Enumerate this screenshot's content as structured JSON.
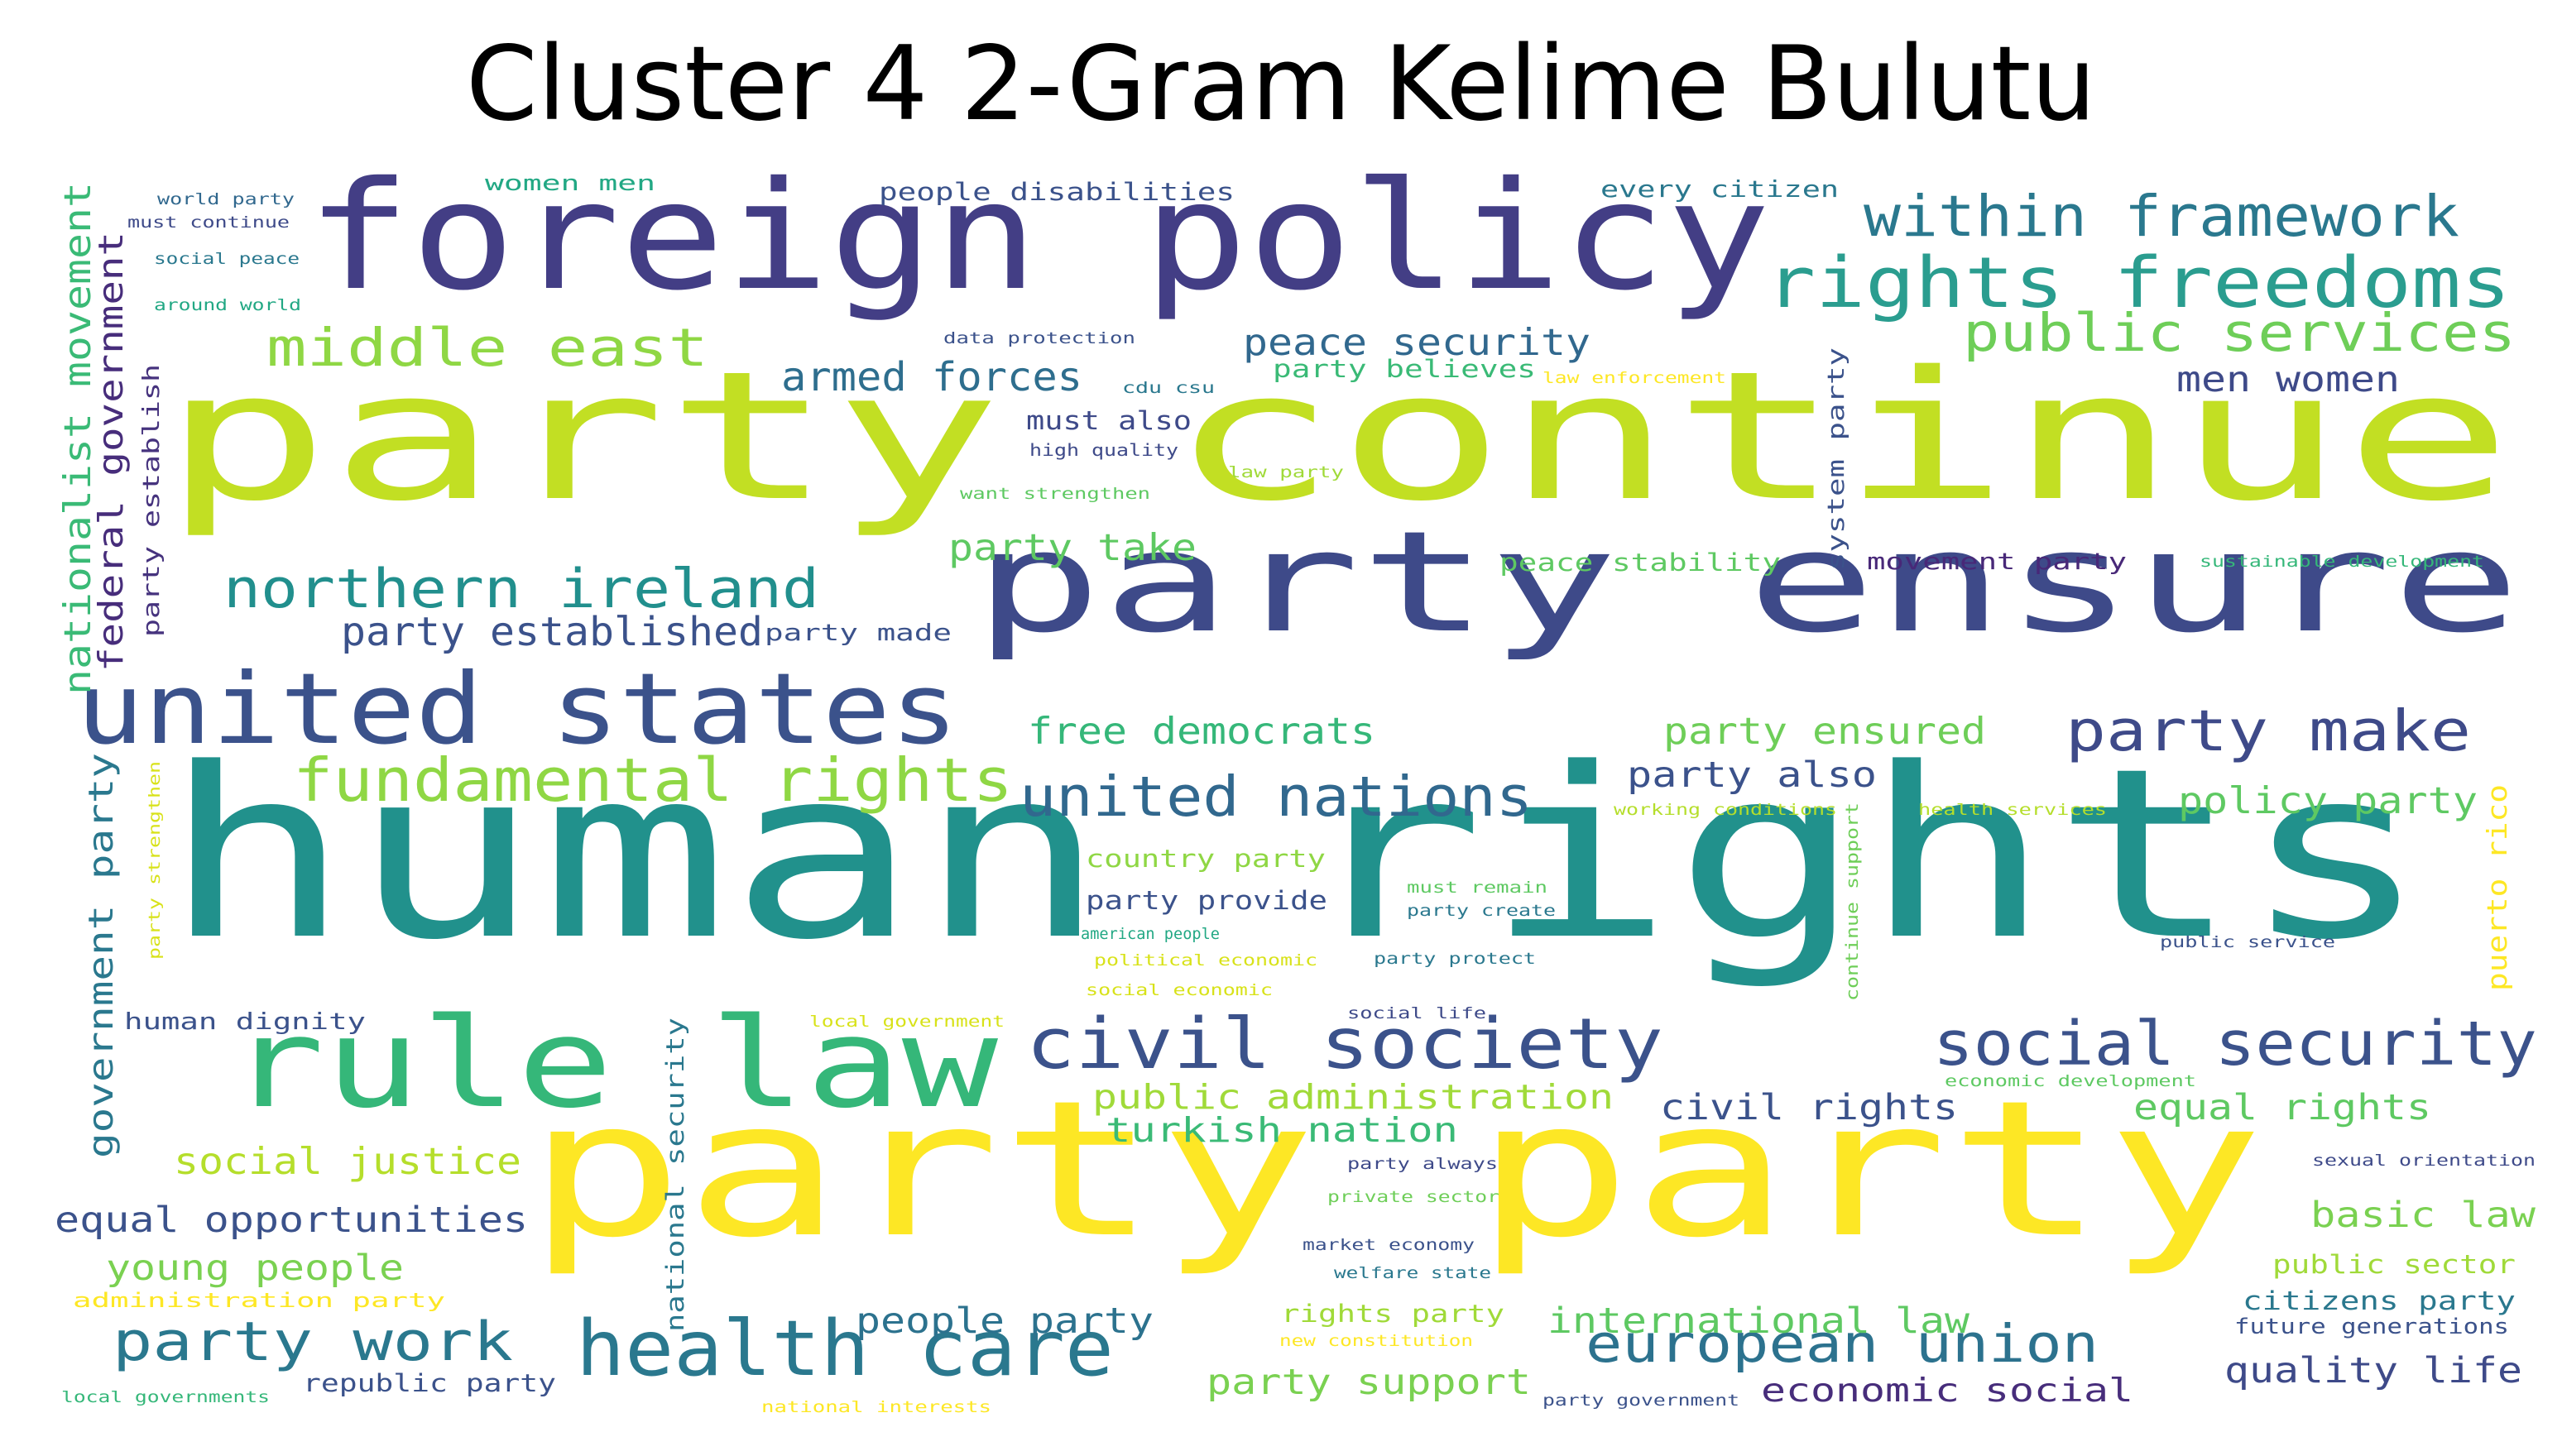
{
  "title": "Cluster 4 2-Gram Kelime Bulutu",
  "palette": {
    "background": "#ffffff",
    "title": "#000000"
  },
  "words": [
    {
      "text": "human rights",
      "color": "#21918c",
      "vertical": false
    },
    {
      "text": "party continue",
      "color": "#c2df23",
      "vertical": false
    },
    {
      "text": "party party",
      "color": "#fde725",
      "vertical": false
    },
    {
      "text": "party ensure",
      "color": "#3e4a89",
      "vertical": false
    },
    {
      "text": "foreign policy",
      "color": "#433e85",
      "vertical": false
    },
    {
      "text": "united states",
      "color": "#3b528b",
      "vertical": false
    },
    {
      "text": "rule law",
      "color": "#35b779",
      "vertical": false
    },
    {
      "text": "health care",
      "color": "#2a788e",
      "vertical": false
    },
    {
      "text": "civil society",
      "color": "#3b528b",
      "vertical": false
    },
    {
      "text": "social security",
      "color": "#3b528b",
      "vertical": false
    },
    {
      "text": "rights freedoms",
      "color": "#2a9d8f",
      "vertical": false
    },
    {
      "text": "within framework",
      "color": "#2a788e",
      "vertical": false
    },
    {
      "text": "northern ireland",
      "color": "#218f8d",
      "vertical": false
    },
    {
      "text": "fundamental rights",
      "color": "#8fd744",
      "vertical": false
    },
    {
      "text": "united nations",
      "color": "#31688e",
      "vertical": false
    },
    {
      "text": "party make",
      "color": "#3e4a89",
      "vertical": false
    },
    {
      "text": "european union",
      "color": "#2c728e",
      "vertical": false
    },
    {
      "text": "middle east",
      "color": "#8fd744",
      "vertical": false
    },
    {
      "text": "public services",
      "color": "#6ece58",
      "vertical": false
    },
    {
      "text": "party work",
      "color": "#2a788e",
      "vertical": false
    },
    {
      "text": "party establish",
      "color": "#46337e",
      "vertical": true
    },
    {
      "text": "federal government",
      "color": "#472d7b",
      "vertical": true
    },
    {
      "text": "nationalist movement",
      "color": "#3aba76",
      "vertical": true
    },
    {
      "text": "government party",
      "color": "#2a788e",
      "vertical": true
    },
    {
      "text": "armed forces",
      "color": "#2e6e8e",
      "vertical": false
    },
    {
      "text": "peace security",
      "color": "#31688e",
      "vertical": false
    },
    {
      "text": "party established",
      "color": "#3b528b",
      "vertical": false
    },
    {
      "text": "free democrats",
      "color": "#35b779",
      "vertical": false
    },
    {
      "text": "party ensured",
      "color": "#6ece58",
      "vertical": false
    },
    {
      "text": "party also",
      "color": "#3b528b",
      "vertical": false
    },
    {
      "text": "policy party",
      "color": "#5ec962",
      "vertical": false
    },
    {
      "text": "men women",
      "color": "#3e4a89",
      "vertical": false
    },
    {
      "text": "party take",
      "color": "#5ec962",
      "vertical": false
    },
    {
      "text": "public administration",
      "color": "#a0da39",
      "vertical": false
    },
    {
      "text": "turkish nation",
      "color": "#3aba76",
      "vertical": false
    },
    {
      "text": "civil rights",
      "color": "#3b528b",
      "vertical": false
    },
    {
      "text": "equal rights",
      "color": "#5ec962",
      "vertical": false
    },
    {
      "text": "social justice",
      "color": "#b5de2b",
      "vertical": false
    },
    {
      "text": "equal opportunities",
      "color": "#3b528b",
      "vertical": false
    },
    {
      "text": "young people",
      "color": "#7ad151",
      "vertical": false
    },
    {
      "text": "basic law",
      "color": "#7ad151",
      "vertical": false
    },
    {
      "text": "people party",
      "color": "#2c728e",
      "vertical": false
    },
    {
      "text": "international law",
      "color": "#5ec962",
      "vertical": false
    },
    {
      "text": "party support",
      "color": "#7ad151",
      "vertical": false
    },
    {
      "text": "quality life",
      "color": "#3e4a89",
      "vertical": false
    },
    {
      "text": "economic social",
      "color": "#472d7b",
      "vertical": false
    },
    {
      "text": "public sector",
      "color": "#a0da39",
      "vertical": false
    },
    {
      "text": "citizens party",
      "color": "#2a788e",
      "vertical": false
    },
    {
      "text": "future generations",
      "color": "#3b528b",
      "vertical": false
    },
    {
      "text": "republic party",
      "color": "#3b528b",
      "vertical": false
    },
    {
      "text": "must also",
      "color": "#3e4a89",
      "vertical": false
    },
    {
      "text": "party provide",
      "color": "#3b528b",
      "vertical": false
    },
    {
      "text": "country party",
      "color": "#8fd744",
      "vertical": false
    },
    {
      "text": "people disabilities",
      "color": "#3b528b",
      "vertical": false
    },
    {
      "text": "every citizen",
      "color": "#2a788e",
      "vertical": false
    },
    {
      "text": "women men",
      "color": "#22a884",
      "vertical": false
    },
    {
      "text": "peace stability",
      "color": "#5ec962",
      "vertical": false
    },
    {
      "text": "movement party",
      "color": "#482878",
      "vertical": false
    },
    {
      "text": "system party",
      "color": "#3b528b",
      "vertical": true
    },
    {
      "text": "party believes",
      "color": "#3aba76",
      "vertical": false
    },
    {
      "text": "party made",
      "color": "#3b528b",
      "vertical": false
    },
    {
      "text": "human dignity",
      "color": "#3b528b",
      "vertical": false
    },
    {
      "text": "national security",
      "color": "#2a788e",
      "vertical": true
    },
    {
      "text": "puerto rico",
      "color": "#fde725",
      "vertical": true
    },
    {
      "text": "administration party",
      "color": "#fde725",
      "vertical": false
    },
    {
      "text": "world party",
      "color": "#31688e",
      "vertical": false
    },
    {
      "text": "must continue",
      "color": "#3e4a89",
      "vertical": false
    },
    {
      "text": "social peace",
      "color": "#2a788e",
      "vertical": false
    },
    {
      "text": "around world",
      "color": "#22a884",
      "vertical": false
    },
    {
      "text": "data protection",
      "color": "#3b528b",
      "vertical": false
    },
    {
      "text": "cdu csu",
      "color": "#2a788e",
      "vertical": false
    },
    {
      "text": "law enforcement",
      "color": "#fde725",
      "vertical": false
    },
    {
      "text": "high quality",
      "color": "#3e4a89",
      "vertical": false
    },
    {
      "text": "law party",
      "color": "#a0da39",
      "vertical": false
    },
    {
      "text": "want strengthen",
      "color": "#5ec962",
      "vertical": false
    },
    {
      "text": "sustainable development",
      "color": "#35b779",
      "vertical": false
    },
    {
      "text": "working conditions",
      "color": "#b5de2b",
      "vertical": false
    },
    {
      "text": "health services",
      "color": "#b5de2b",
      "vertical": false
    },
    {
      "text": "continue support",
      "color": "#6ece58",
      "vertical": true
    },
    {
      "text": "party strengthen",
      "color": "#d8e219",
      "vertical": true
    },
    {
      "text": "must remain",
      "color": "#5ec962",
      "vertical": false
    },
    {
      "text": "party create",
      "color": "#2a788e",
      "vertical": false
    },
    {
      "text": "american people",
      "color": "#22a884",
      "vertical": false
    },
    {
      "text": "political economic",
      "color": "#d8e219",
      "vertical": false
    },
    {
      "text": "party protect",
      "color": "#2a788e",
      "vertical": false
    },
    {
      "text": "social economic",
      "color": "#d8e219",
      "vertical": false
    },
    {
      "text": "public service",
      "color": "#3b528b",
      "vertical": false
    },
    {
      "text": "social life",
      "color": "#3e4a89",
      "vertical": false
    },
    {
      "text": "local government",
      "color": "#d8e219",
      "vertical": false
    },
    {
      "text": "economic development",
      "color": "#5ec962",
      "vertical": false
    },
    {
      "text": "party always",
      "color": "#3e4a89",
      "vertical": false
    },
    {
      "text": "sexual orientation",
      "color": "#3e4a89",
      "vertical": false
    },
    {
      "text": "private sector",
      "color": "#6ece58",
      "vertical": false
    },
    {
      "text": "market economy",
      "color": "#3b528b",
      "vertical": false
    },
    {
      "text": "welfare state",
      "color": "#2a788e",
      "vertical": false
    },
    {
      "text": "rights party",
      "color": "#a0da39",
      "vertical": false
    },
    {
      "text": "new constitution",
      "color": "#fde725",
      "vertical": false
    },
    {
      "text": "party government",
      "color": "#3b528b",
      "vertical": false
    },
    {
      "text": "local governments",
      "color": "#35b779",
      "vertical": false
    },
    {
      "text": "national interests",
      "color": "#fde725",
      "vertical": false
    }
  ]
}
